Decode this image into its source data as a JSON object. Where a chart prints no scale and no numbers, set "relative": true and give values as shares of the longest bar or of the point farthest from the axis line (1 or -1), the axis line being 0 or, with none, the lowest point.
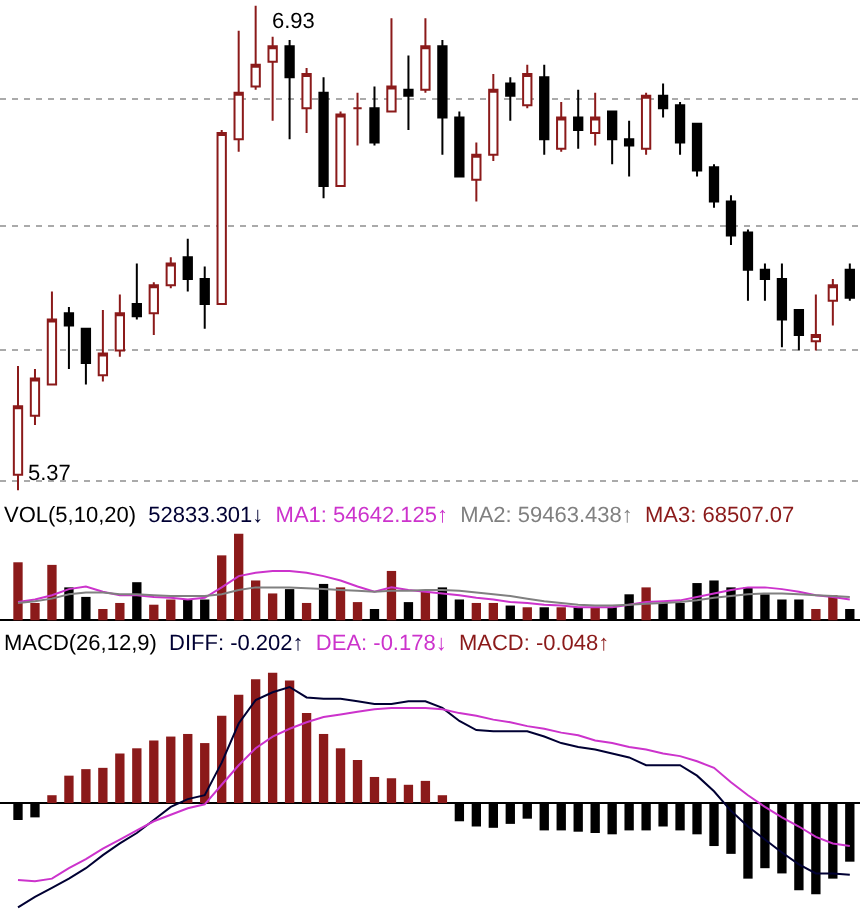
{
  "chart_data": [
    {
      "type": "candlestick",
      "categories": [
        null,
        null,
        null,
        null,
        null,
        null,
        null,
        null,
        null,
        null,
        null,
        null,
        null,
        null,
        null,
        null,
        null,
        null,
        null,
        null,
        null,
        null,
        null,
        null,
        null,
        null,
        null,
        null,
        null,
        null,
        null,
        null,
        null,
        null,
        null,
        null,
        null,
        null,
        null,
        null,
        null,
        null,
        null,
        null,
        null,
        null,
        null,
        null,
        null,
        null
      ],
      "ohlc": [
        [
          5.42,
          5.77,
          5.37,
          5.64
        ],
        [
          5.61,
          5.76,
          5.58,
          5.73
        ],
        [
          5.71,
          6.01,
          5.71,
          5.92
        ],
        [
          5.94,
          5.96,
          5.76,
          5.9
        ],
        [
          5.89,
          5.89,
          5.71,
          5.78
        ],
        [
          5.74,
          5.95,
          5.72,
          5.81
        ],
        [
          5.82,
          6.0,
          5.8,
          5.94
        ],
        [
          5.97,
          6.1,
          5.92,
          5.93
        ],
        [
          5.94,
          6.04,
          5.87,
          6.03
        ],
        [
          6.03,
          6.12,
          6.02,
          6.1
        ],
        [
          6.12,
          6.18,
          6.01,
          6.05
        ],
        [
          6.05,
          6.09,
          5.89,
          5.97
        ],
        [
          5.97,
          6.53,
          5.97,
          6.52
        ],
        [
          6.5,
          6.85,
          6.46,
          6.65
        ],
        [
          6.67,
          6.93,
          6.66,
          6.74
        ],
        [
          6.75,
          6.83,
          6.56,
          6.8
        ],
        [
          6.8,
          6.82,
          6.5,
          6.7
        ],
        [
          6.6,
          6.73,
          6.52,
          6.71
        ],
        [
          6.65,
          6.7,
          6.31,
          6.35
        ],
        [
          6.35,
          6.59,
          6.35,
          6.58
        ],
        [
          6.6,
          6.65,
          6.48,
          6.6
        ],
        [
          6.6,
          6.67,
          6.48,
          6.49
        ],
        [
          6.59,
          6.89,
          6.59,
          6.67
        ],
        [
          6.66,
          6.77,
          6.53,
          6.64
        ],
        [
          6.66,
          6.89,
          6.65,
          6.8
        ],
        [
          6.8,
          6.82,
          6.45,
          6.57
        ],
        [
          6.57,
          6.59,
          6.38,
          6.38
        ],
        [
          6.37,
          6.49,
          6.3,
          6.45
        ],
        [
          6.45,
          6.71,
          6.43,
          6.66
        ],
        [
          6.68,
          6.7,
          6.56,
          6.64
        ],
        [
          6.61,
          6.74,
          6.6,
          6.71
        ],
        [
          6.7,
          6.74,
          6.45,
          6.5
        ],
        [
          6.47,
          6.62,
          6.46,
          6.57
        ],
        [
          6.57,
          6.66,
          6.47,
          6.53
        ],
        [
          6.52,
          6.65,
          6.48,
          6.57
        ],
        [
          6.59,
          6.59,
          6.42,
          6.5
        ],
        [
          6.5,
          6.56,
          6.38,
          6.48
        ],
        [
          6.47,
          6.65,
          6.45,
          6.64
        ],
        [
          6.64,
          6.68,
          6.57,
          6.6
        ],
        [
          6.61,
          6.62,
          6.45,
          6.49
        ],
        [
          6.55,
          6.55,
          6.38,
          6.4
        ],
        [
          6.41,
          6.42,
          6.28,
          6.3
        ],
        [
          6.3,
          6.32,
          6.16,
          6.19
        ],
        [
          6.2,
          6.21,
          5.98,
          6.08
        ],
        [
          6.08,
          6.1,
          5.98,
          6.05
        ],
        [
          6.05,
          6.1,
          5.83,
          5.92
        ],
        [
          5.95,
          5.95,
          5.82,
          5.87
        ],
        [
          5.85,
          6.0,
          5.82,
          5.87
        ],
        [
          5.98,
          6.05,
          5.9,
          6.03
        ],
        [
          6.08,
          6.1,
          5.98,
          5.99
        ]
      ],
      "annotations": [
        "6.93",
        "5.37"
      ],
      "yticks": [
        {
          "value": 6.63,
          "label": null
        },
        {
          "value": 6.22,
          "label": null
        },
        {
          "value": 5.82,
          "label": null
        },
        {
          "value": 5.4,
          "label": null
        }
      ],
      "grid": "y",
      "legend": false
    },
    {
      "type": "bar",
      "relative": true,
      "title": "VOL(5,10,20)",
      "categories": [
        null,
        null,
        null,
        null,
        null,
        null,
        null,
        null,
        null,
        null,
        null,
        null,
        null,
        null,
        null,
        null,
        null,
        null,
        null,
        null,
        null,
        null,
        null,
        null,
        null,
        null,
        null,
        null,
        null,
        null,
        null,
        null,
        null,
        null,
        null,
        null,
        null,
        null,
        null,
        null,
        null,
        null,
        null,
        null,
        null,
        null,
        null,
        null,
        null,
        null
      ],
      "series": [
        {
          "name": "52833.301↓",
          "color": "#000033",
          "colors": [
            "#8b1a1a",
            "#8b1a1a",
            "#8b1a1a",
            "#000000",
            "#000000",
            "#8b1a1a",
            "#8b1a1a",
            "#000000",
            "#8b1a1a",
            "#8b1a1a",
            "#000000",
            "#000000",
            "#8b1a1a",
            "#8b1a1a",
            "#8b1a1a",
            "#8b1a1a",
            "#000000",
            "#8b1a1a",
            "#000000",
            "#8b1a1a",
            "#8b1a1a",
            "#000000",
            "#8b1a1a",
            "#000000",
            "#8b1a1a",
            "#000000",
            "#000000",
            "#8b1a1a",
            "#8b1a1a",
            "#000000",
            "#8b1a1a",
            "#000000",
            "#8b1a1a",
            "#000000",
            "#8b1a1a",
            "#000000",
            "#000000",
            "#8b1a1a",
            "#000000",
            "#000000",
            "#000000",
            "#000000",
            "#000000",
            "#000000",
            "#000000",
            "#000000",
            "#000000",
            "#8b1a1a",
            "#8b1a1a",
            "#000000"
          ],
          "values": [
            0.67,
            0.2,
            0.64,
            0.38,
            0.27,
            0.13,
            0.2,
            0.44,
            0.18,
            0.24,
            0.24,
            0.24,
            0.75,
            1,
            0.46,
            0.31,
            0.36,
            0.2,
            0.42,
            0.38,
            0.21,
            0.13,
            0.57,
            0.21,
            0.33,
            0.38,
            0.24,
            0.2,
            0.2,
            0.17,
            0.15,
            0.15,
            0.15,
            0.15,
            0.15,
            0.15,
            0.3,
            0.38,
            0.2,
            0.2,
            0.43,
            0.46,
            0.38,
            0.38,
            0.3,
            0.24,
            0.24,
            0.13,
            0.29,
            0.13
          ]
        },
        {
          "type": "line",
          "name": "MA1: 54642.125↑",
          "color": "#cc33cc",
          "values": [
            0.21,
            0.24,
            0.29,
            0.36,
            0.39,
            0.33,
            0.29,
            0.29,
            0.27,
            0.26,
            0.24,
            0.26,
            0.38,
            0.51,
            0.55,
            0.57,
            0.57,
            0.55,
            0.51,
            0.46,
            0.39,
            0.33,
            0.38,
            0.35,
            0.33,
            0.31,
            0.29,
            0.26,
            0.24,
            0.21,
            0.2,
            0.18,
            0.17,
            0.15,
            0.15,
            0.15,
            0.18,
            0.21,
            0.22,
            0.23,
            0.27,
            0.31,
            0.35,
            0.38,
            0.38,
            0.36,
            0.33,
            0.29,
            0.27,
            0.24
          ]
        },
        {
          "type": "line",
          "name": "MA2: 59463.438↑",
          "color": "#808080",
          "values": [
            0.2,
            0.22,
            0.25,
            0.3,
            0.32,
            0.32,
            0.3,
            0.3,
            0.29,
            0.28,
            0.28,
            0.28,
            0.3,
            0.35,
            0.38,
            0.38,
            0.38,
            0.37,
            0.36,
            0.35,
            0.34,
            0.33,
            0.34,
            0.34,
            0.35,
            0.35,
            0.34,
            0.32,
            0.3,
            0.28,
            0.25,
            0.22,
            0.2,
            0.18,
            0.17,
            0.17,
            0.18,
            0.19,
            0.2,
            0.21,
            0.23,
            0.26,
            0.28,
            0.3,
            0.31,
            0.31,
            0.3,
            0.29,
            0.28,
            0.27
          ]
        }
      ],
      "annotations": [
        "MA3: 68507.07"
      ],
      "legend": false
    },
    {
      "type": "bar",
      "relative": true,
      "title": "MACD(26,12,9)",
      "categories": [
        null,
        null,
        null,
        null,
        null,
        null,
        null,
        null,
        null,
        null,
        null,
        null,
        null,
        null,
        null,
        null,
        null,
        null,
        null,
        null,
        null,
        null,
        null,
        null,
        null,
        null,
        null,
        null,
        null,
        null,
        null,
        null,
        null,
        null,
        null,
        null,
        null,
        null,
        null,
        null,
        null,
        null,
        null,
        null,
        null,
        null,
        null,
        null,
        null,
        null
      ],
      "series": [
        {
          "type": "line",
          "name": "DIFF: -0.202↑",
          "color": "#000033",
          "values": [
            -0.8,
            -0.72,
            -0.65,
            -0.58,
            -0.5,
            -0.4,
            -0.31,
            -0.23,
            -0.13,
            -0.03,
            0.03,
            0.06,
            0.31,
            0.61,
            0.79,
            0.85,
            0.89,
            0.81,
            0.8,
            0.8,
            0.78,
            0.76,
            0.76,
            0.78,
            0.78,
            0.73,
            0.63,
            0.56,
            0.55,
            0.55,
            0.55,
            0.51,
            0.46,
            0.43,
            0.41,
            0.38,
            0.35,
            0.29,
            0.29,
            0.29,
            0.21,
            0.09,
            -0.06,
            -0.18,
            -0.28,
            -0.38,
            -0.47,
            -0.54,
            -0.54,
            -0.55
          ]
        },
        {
          "type": "line",
          "name": "DEA: -0.178↓",
          "color": "#cc33cc",
          "values": [
            -0.59,
            -0.6,
            -0.58,
            -0.5,
            -0.43,
            -0.35,
            -0.28,
            -0.21,
            -0.14,
            -0.09,
            -0.04,
            -0.01,
            0.14,
            0.29,
            0.42,
            0.51,
            0.57,
            0.62,
            0.66,
            0.68,
            0.7,
            0.72,
            0.73,
            0.73,
            0.73,
            0.72,
            0.69,
            0.67,
            0.64,
            0.62,
            0.59,
            0.57,
            0.54,
            0.52,
            0.48,
            0.46,
            0.43,
            0.41,
            0.38,
            0.36,
            0.32,
            0.27,
            0.16,
            0.06,
            -0.03,
            -0.11,
            -0.18,
            -0.26,
            -0.31,
            -0.33
          ]
        },
        {
          "name": "MACD: -0.048↑",
          "color": "#8b1a1a",
          "colors": [
            "#000000",
            "#000000",
            "#8b1a1a",
            "#8b1a1a",
            "#8b1a1a",
            "#8b1a1a",
            "#8b1a1a",
            "#8b1a1a",
            "#8b1a1a",
            "#8b1a1a",
            "#8b1a1a",
            "#8b1a1a",
            "#8b1a1a",
            "#8b1a1a",
            "#8b1a1a",
            "#8b1a1a",
            "#8b1a1a",
            "#8b1a1a",
            "#8b1a1a",
            "#8b1a1a",
            "#8b1a1a",
            "#8b1a1a",
            "#8b1a1a",
            "#8b1a1a",
            "#8b1a1a",
            "#8b1a1a",
            "#000000",
            "#000000",
            "#000000",
            "#000000",
            "#000000",
            "#000000",
            "#000000",
            "#000000",
            "#000000",
            "#000000",
            "#000000",
            "#000000",
            "#000000",
            "#000000",
            "#000000",
            "#000000",
            "#000000",
            "#000000",
            "#000000",
            "#000000",
            "#000000",
            "#000000",
            "#000000",
            "#000000"
          ],
          "values": [
            -0.13,
            -0.11,
            0.06,
            0.21,
            0.26,
            0.27,
            0.38,
            0.42,
            0.48,
            0.51,
            0.53,
            0.46,
            0.67,
            0.83,
            0.95,
            1.0,
            0.94,
            0.69,
            0.53,
            0.42,
            0.33,
            0.2,
            0.19,
            0.14,
            0.17,
            0.06,
            -0.14,
            -0.18,
            -0.19,
            -0.16,
            -0.12,
            -0.21,
            -0.21,
            -0.22,
            -0.23,
            -0.24,
            -0.21,
            -0.21,
            -0.18,
            -0.21,
            -0.24,
            -0.33,
            -0.39,
            -0.58,
            -0.5,
            -0.54,
            -0.67,
            -0.7,
            -0.58,
            -0.45
          ]
        }
      ],
      "legend": false
    }
  ]
}
